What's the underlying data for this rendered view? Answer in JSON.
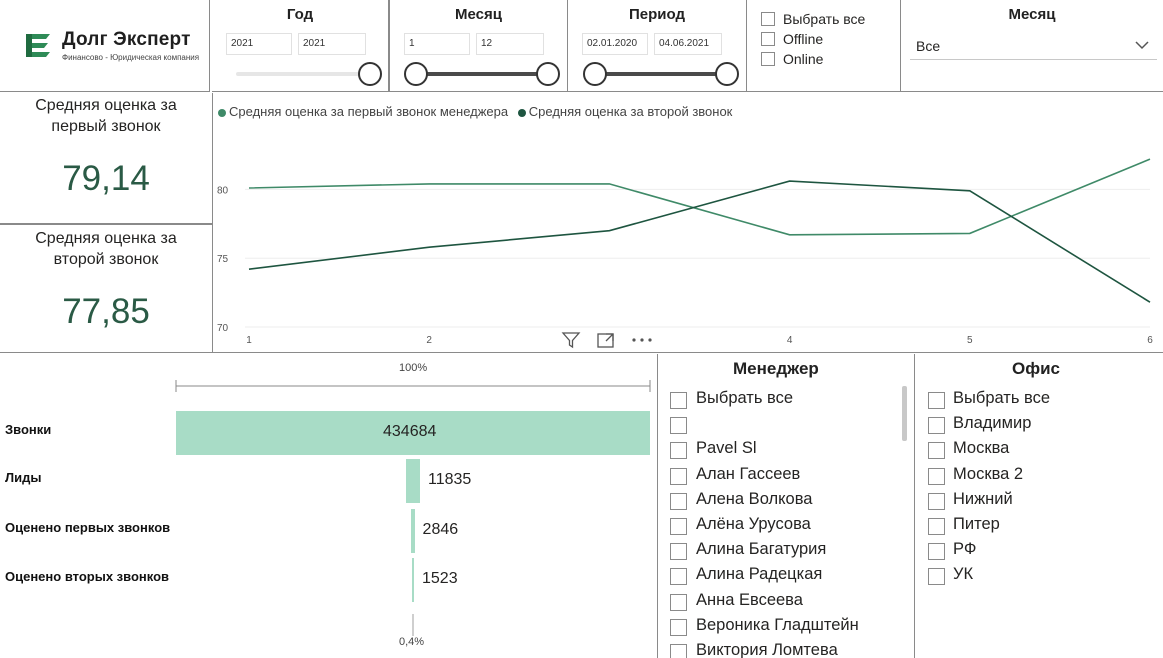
{
  "logo": {
    "title": "Долг Эксперт",
    "subtitle": "Финансово - Юридическая компания"
  },
  "year_slicer": {
    "title": "Год",
    "from": "2021",
    "to": "2021"
  },
  "month_range_slicer": {
    "title": "Месяц",
    "from": "1",
    "to": "12"
  },
  "period_slicer": {
    "title": "Период",
    "from": "02.01.2020",
    "to": "04.06.2021"
  },
  "channel_slicer": {
    "items": [
      {
        "label": "Выбрать все",
        "checked": false
      },
      {
        "label": "Offline",
        "checked": false
      },
      {
        "label": "Online",
        "checked": false
      }
    ]
  },
  "month_dropdown": {
    "title": "Месяц",
    "value": "Все",
    "icon": "chevron-down-icon"
  },
  "kpi_first": {
    "label_line1": "Средняя оценка за",
    "label_line2": "первый звонок",
    "value": "79,14"
  },
  "kpi_second": {
    "label_line1": "Средняя оценка за",
    "label_line2": "второй звонок",
    "value": "77,85"
  },
  "chart_data": {
    "type": "line",
    "x": [
      1,
      2,
      3,
      4,
      5,
      6
    ],
    "x_tick_labels": [
      "1",
      "2",
      "",
      "4",
      "5",
      "6"
    ],
    "y_tick_labels": [
      "70",
      "75",
      "80"
    ],
    "ylim": [
      70,
      82.5
    ],
    "grid": true,
    "legend_position": "top-left",
    "series": [
      {
        "name": "Средняя оценка за первый звонок менеджера",
        "color": "#3f8a68",
        "values": [
          80.1,
          80.4,
          80.4,
          76.7,
          76.8,
          82.2
        ]
      },
      {
        "name": "Средняя оценка за второй звонок",
        "color": "#1e5540",
        "values": [
          74.2,
          75.8,
          77.0,
          80.6,
          79.9,
          71.8
        ]
      }
    ]
  },
  "chart_toolbar": {
    "filter_icon": "filter-icon",
    "focus_icon": "focus-mode-icon",
    "more_icon": "more-options-icon"
  },
  "funnel": {
    "top_percent": "100%",
    "bottom_percent": "0,4%",
    "color": "#a8dcc6",
    "stages": [
      {
        "label": "Звонки",
        "value": 434684,
        "value_text": "434684"
      },
      {
        "label": "Лиды",
        "value": 11835,
        "value_text": "11835"
      },
      {
        "label": "Оценено первых звонков",
        "value": 2846,
        "value_text": "2846"
      },
      {
        "label": "Оценено вторых звонков",
        "value": 1523,
        "value_text": "1523"
      }
    ]
  },
  "manager_slicer": {
    "title": "Менеджер",
    "items": [
      "Выбрать все",
      "",
      "Pavel Sl",
      "Алан Гассеев",
      "Алена Волкова",
      "Алёна Урусова",
      "Алина Багатурия",
      "Алина Радецкая",
      "Анна Евсеева",
      "Вероника Гладштейн",
      "Виктория Ломтева"
    ]
  },
  "office_slicer": {
    "title": "Офис",
    "items": [
      "Выбрать все",
      "Владимир",
      "Москва",
      "Москва 2",
      "Нижний",
      "Питер",
      "РФ",
      "УК"
    ]
  }
}
